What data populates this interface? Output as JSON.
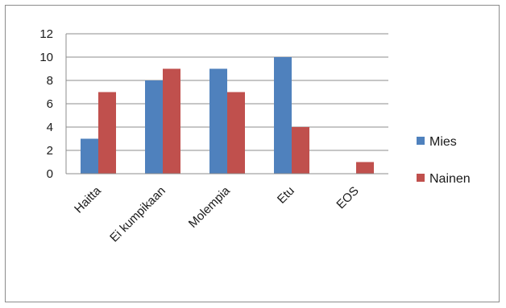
{
  "chart_data": {
    "type": "bar",
    "categories": [
      "Haitta",
      "Ei kumpikaan",
      "Molempia",
      "Etu",
      "EOS"
    ],
    "series": [
      {
        "name": "Mies",
        "color": "#4f81bd",
        "values": [
          3,
          8,
          9,
          10,
          0
        ]
      },
      {
        "name": "Nainen",
        "color": "#c0504d",
        "values": [
          7,
          9,
          7,
          4,
          1
        ]
      }
    ],
    "ylim": [
      0,
      12
    ],
    "yticks": [
      "0",
      "2",
      "4",
      "6",
      "8",
      "10",
      "12"
    ],
    "ytick_values": [
      0,
      2,
      4,
      6,
      8,
      10,
      12
    ],
    "grid": true,
    "legend": "right",
    "title": "",
    "xlabel": "",
    "ylabel": ""
  }
}
